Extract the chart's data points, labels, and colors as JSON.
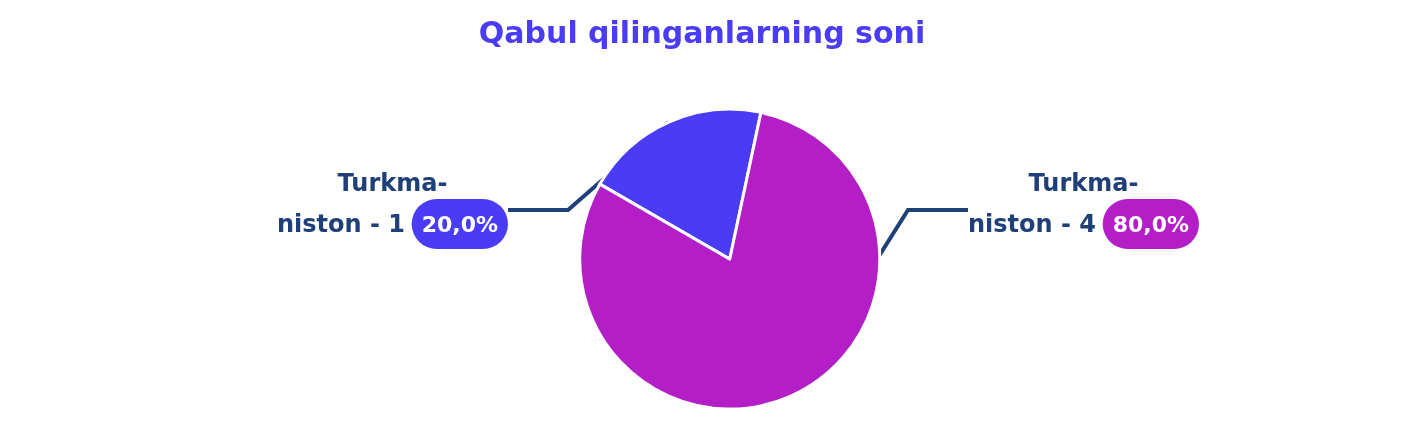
{
  "chart_data": {
    "type": "pie",
    "title": "Qabul qilinganlarning soni",
    "categories": [
      "Turkma-\nniston - 1",
      "Turkma-\nniston - 4"
    ],
    "values": [
      20,
      80
    ],
    "value_labels": [
      "20,0%",
      "80,0%"
    ],
    "colors": [
      "#4a3cf5",
      "#b41ec6"
    ],
    "legend": false
  }
}
